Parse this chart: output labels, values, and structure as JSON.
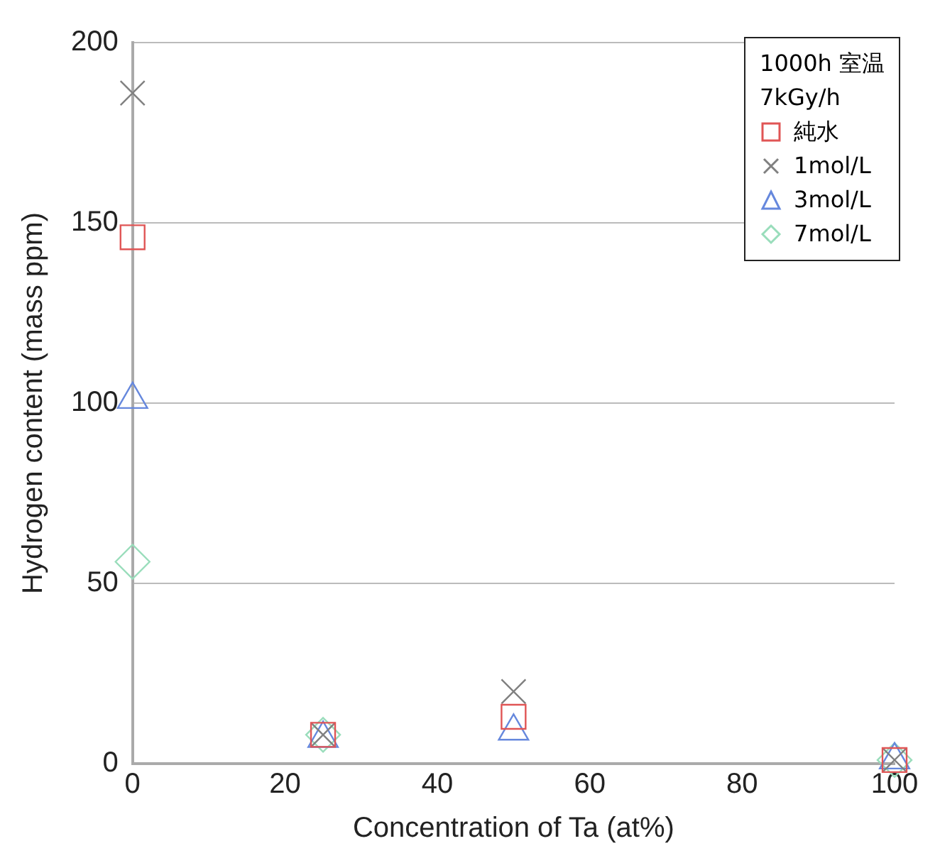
{
  "chart_data": {
    "type": "scatter",
    "xlabel": "Concentration of Ta (at%)",
    "ylabel": "Hydrogen content (mass ppm)",
    "legend_title": "1000h 室温\n7kGy/h",
    "x": [
      0,
      25,
      50,
      100
    ],
    "xlim": [
      0,
      100
    ],
    "xticks": [
      0,
      20,
      40,
      60,
      80,
      100
    ],
    "ylim": [
      0,
      200
    ],
    "yticks": [
      0,
      50,
      100,
      150,
      200
    ],
    "grid": "y",
    "legend": "top right",
    "series": [
      {
        "name": "純水",
        "color": "#e05555",
        "marker": "square",
        "values": [
          146,
          8,
          13,
          1
        ]
      },
      {
        "name": "1mol/L",
        "color": "#808080",
        "marker": "cross",
        "values": [
          186,
          8,
          20,
          1
        ]
      },
      {
        "name": "3mol/L",
        "color": "#6688dd",
        "marker": "triangle",
        "values": [
          101,
          7,
          9,
          1
        ]
      },
      {
        "name": "7mol/L",
        "color": "#99ddbb",
        "marker": "diamond",
        "values": [
          56,
          8,
          null,
          1
        ]
      }
    ]
  }
}
